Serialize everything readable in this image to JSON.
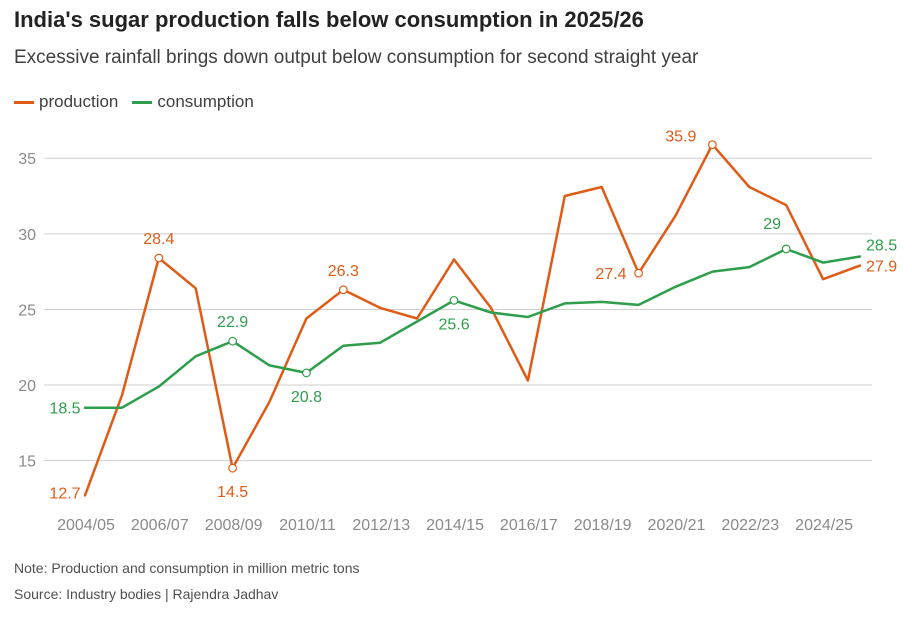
{
  "title": "India's sugar production falls below consumption in 2025/26",
  "subtitle": "Excessive rainfall brings down output below consumption for second straight year",
  "note": "Note: Production and consumption in million metric tons",
  "source": "Source: Industry bodies | Rajendra Jadhav",
  "colors": {
    "production": "#e05c16",
    "consumption": "#2e9e4c",
    "grid": "#cfcfcf",
    "tick_text": "#8a8a8a"
  },
  "chart_data": {
    "type": "line",
    "x": [
      "2004/05",
      "2005/06",
      "2006/07",
      "2007/08",
      "2008/09",
      "2009/10",
      "2010/11",
      "2011/12",
      "2012/13",
      "2013/14",
      "2014/15",
      "2015/16",
      "2016/17",
      "2017/18",
      "2018/19",
      "2019/20",
      "2020/21",
      "2021/22",
      "2022/23",
      "2023/24",
      "2024/25",
      "2025/26"
    ],
    "x_tick_labels": [
      "2004/05",
      "2006/07",
      "2008/09",
      "2010/11",
      "2012/13",
      "2014/15",
      "2016/17",
      "2018/19",
      "2020/21",
      "2022/23",
      "2024/25"
    ],
    "ylim": [
      12,
      37
    ],
    "y_ticks": [
      15,
      20,
      25,
      30,
      35
    ],
    "grid": "horizontal",
    "legend_position": "top-left",
    "series": [
      {
        "name": "production",
        "color_key": "production",
        "values": [
          12.7,
          19.3,
          28.4,
          26.4,
          14.5,
          18.9,
          24.4,
          26.3,
          25.1,
          24.4,
          28.3,
          25.1,
          20.3,
          32.5,
          33.1,
          27.4,
          31.2,
          35.9,
          33.1,
          31.9,
          27.0,
          27.9
        ],
        "labels": [
          {
            "index": 0,
            "text": "12.7",
            "marker": false
          },
          {
            "index": 2,
            "text": "28.4",
            "marker": true
          },
          {
            "index": 4,
            "text": "14.5",
            "marker": true
          },
          {
            "index": 7,
            "text": "26.3",
            "marker": true
          },
          {
            "index": 15,
            "text": "27.4",
            "marker": true
          },
          {
            "index": 17,
            "text": "35.9",
            "marker": true
          },
          {
            "index": 21,
            "text": "27.9",
            "marker": false
          }
        ]
      },
      {
        "name": "consumption",
        "color_key": "consumption",
        "values": [
          18.5,
          18.5,
          19.9,
          21.9,
          22.9,
          21.3,
          20.8,
          22.6,
          22.8,
          24.2,
          25.6,
          24.8,
          24.5,
          25.4,
          25.5,
          25.3,
          26.5,
          27.5,
          27.8,
          29.0,
          28.1,
          28.5
        ],
        "labels": [
          {
            "index": 0,
            "text": "18.5",
            "marker": false
          },
          {
            "index": 4,
            "text": "22.9",
            "marker": true
          },
          {
            "index": 6,
            "text": "20.8",
            "marker": true
          },
          {
            "index": 10,
            "text": "25.6",
            "marker": true
          },
          {
            "index": 19,
            "text": "29",
            "marker": true
          },
          {
            "index": 21,
            "text": "28.5",
            "marker": false
          }
        ]
      }
    ]
  }
}
